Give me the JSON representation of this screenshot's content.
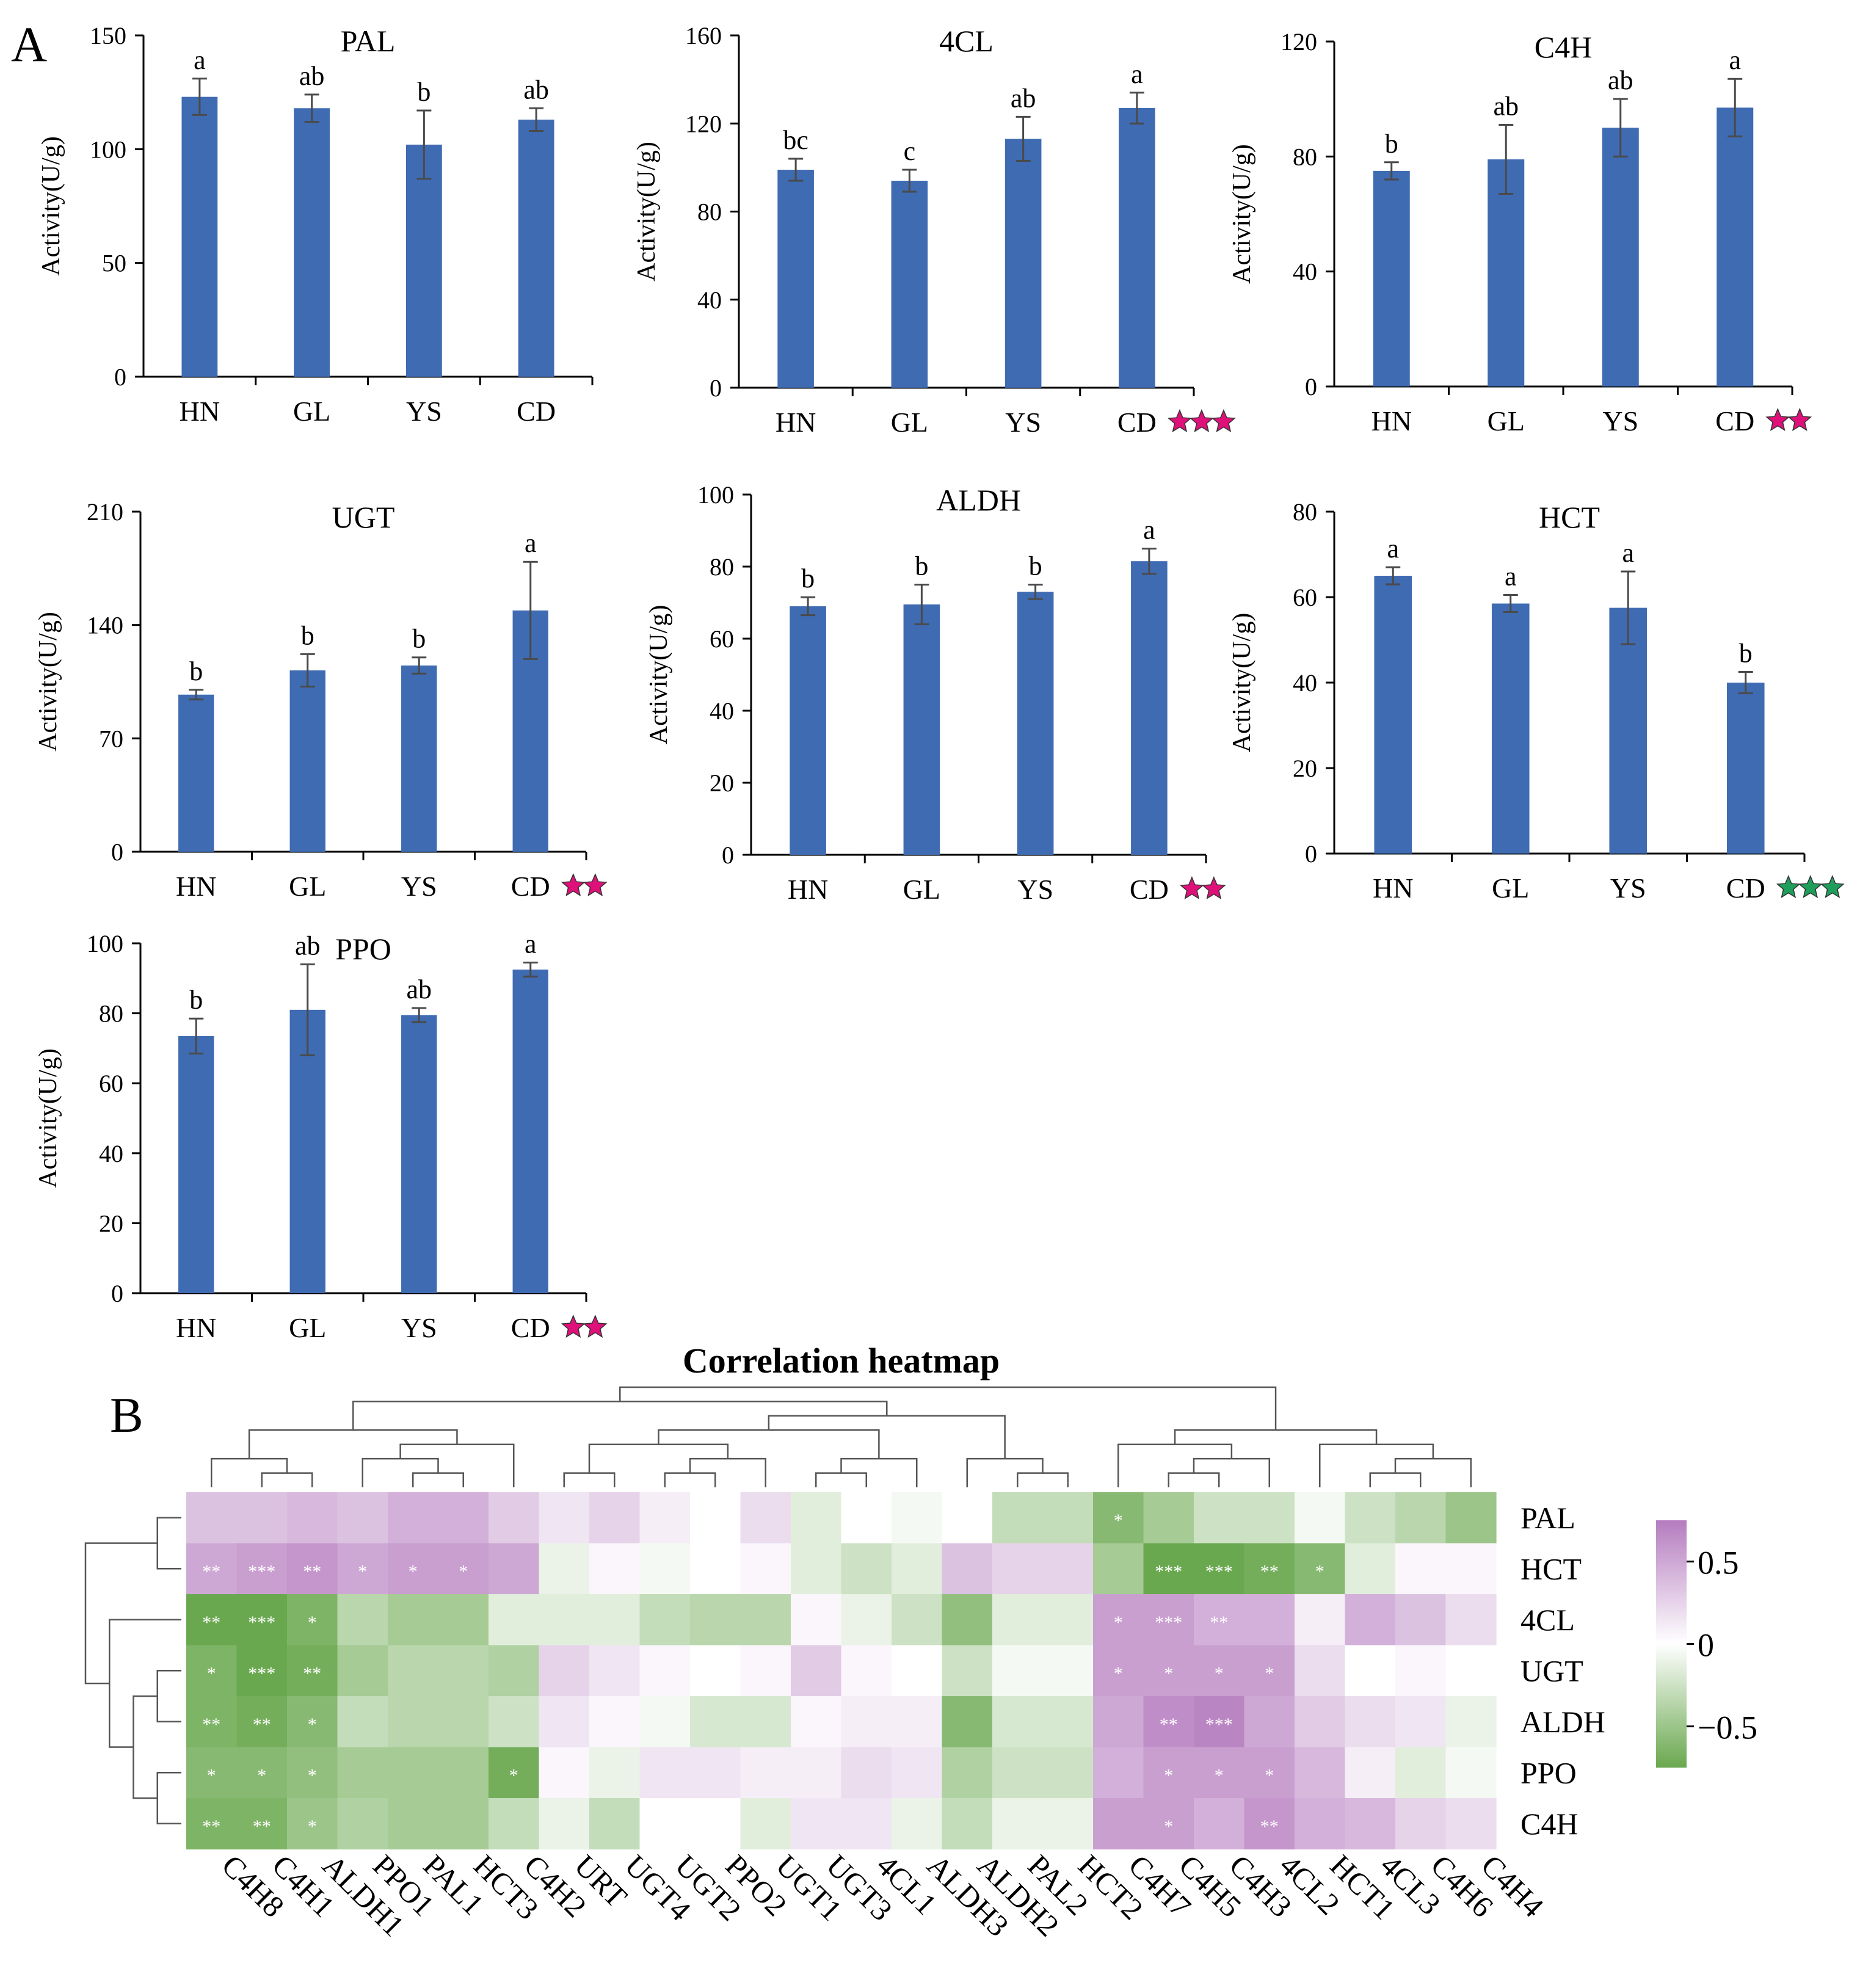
{
  "figure": {
    "panel_labels": [
      "A",
      "B"
    ],
    "colors": {
      "bar": "#3F6BB2",
      "star_magenta": "#E0107A",
      "star_green": "#1E9E5A",
      "heat_low": "#6AA84F",
      "heat_mid": "#FFFFFF",
      "heat_high": "#B57CBF"
    }
  },
  "chart_data": [
    {
      "type": "bar",
      "title": "PAL",
      "ylabel": "Activity(U/g)",
      "categories": [
        "HN",
        "GL",
        "YS",
        "CD"
      ],
      "values": [
        123,
        118,
        102,
        113
      ],
      "errors": [
        8,
        6,
        15,
        5
      ],
      "letters": [
        "a",
        "ab",
        "b",
        "ab"
      ],
      "yticks": [
        0,
        50,
        100,
        150
      ],
      "ylim": [
        0,
        150
      ],
      "stars": 0,
      "star_color": ""
    },
    {
      "type": "bar",
      "title": "4CL",
      "ylabel": "Activity(U/g)",
      "categories": [
        "HN",
        "GL",
        "YS",
        "CD"
      ],
      "values": [
        99,
        94,
        113,
        127
      ],
      "errors": [
        5,
        5,
        10,
        7
      ],
      "letters": [
        "bc",
        "c",
        "ab",
        "a"
      ],
      "yticks": [
        0,
        40,
        80,
        120,
        160
      ],
      "ylim": [
        0,
        160
      ],
      "stars": 3,
      "star_color": "magenta"
    },
    {
      "type": "bar",
      "title": "C4H",
      "ylabel": "Activity(U/g)",
      "categories": [
        "HN",
        "GL",
        "YS",
        "CD"
      ],
      "values": [
        75,
        79,
        90,
        97
      ],
      "errors": [
        3,
        12,
        10,
        10
      ],
      "letters": [
        "b",
        "ab",
        "ab",
        "a"
      ],
      "yticks": [
        0,
        40,
        80,
        120
      ],
      "ylim": [
        0,
        120
      ],
      "stars": 2,
      "star_color": "magenta"
    },
    {
      "type": "bar",
      "title": "UGT",
      "ylabel": "Activity(U/g)",
      "categories": [
        "HN",
        "GL",
        "YS",
        "CD"
      ],
      "values": [
        97,
        112,
        115,
        149
      ],
      "errors": [
        3,
        10,
        5,
        30
      ],
      "letters": [
        "b",
        "b",
        "b",
        "a"
      ],
      "yticks": [
        0,
        70,
        140,
        210
      ],
      "ylim": [
        0,
        210
      ],
      "stars": 2,
      "star_color": "magenta"
    },
    {
      "type": "bar",
      "title": "ALDH",
      "ylabel": "Activity(U/g)",
      "categories": [
        "HN",
        "GL",
        "YS",
        "CD"
      ],
      "values": [
        69,
        69.5,
        73,
        81.5
      ],
      "errors": [
        2.5,
        5.5,
        2,
        3.5
      ],
      "letters": [
        "b",
        "b",
        "b",
        "a"
      ],
      "yticks": [
        0,
        20,
        40,
        60,
        80,
        100
      ],
      "ylim": [
        0,
        100
      ],
      "stars": 2,
      "star_color": "magenta"
    },
    {
      "type": "bar",
      "title": "HCT",
      "ylabel": "Activity(U/g)",
      "categories": [
        "HN",
        "GL",
        "YS",
        "CD"
      ],
      "values": [
        65,
        58.5,
        57.5,
        40
      ],
      "errors": [
        2,
        2,
        8.5,
        2.5
      ],
      "letters": [
        "a",
        "a",
        "a",
        "b"
      ],
      "yticks": [
        0,
        20,
        40,
        60,
        80
      ],
      "ylim": [
        0,
        80
      ],
      "stars": 3,
      "star_color": "green"
    },
    {
      "type": "bar",
      "title": "PPO",
      "ylabel": "Activity(U/g)",
      "categories": [
        "HN",
        "GL",
        "YS",
        "CD"
      ],
      "values": [
        73.5,
        81,
        79.5,
        92.5
      ],
      "errors": [
        5,
        13,
        2,
        2
      ],
      "letters": [
        "b",
        "ab",
        "ab",
        "a"
      ],
      "yticks": [
        0,
        20,
        40,
        60,
        80,
        100
      ],
      "ylim": [
        0,
        100
      ],
      "stars": 2,
      "star_color": "magenta"
    },
    {
      "type": "heatmap",
      "title": "Correlation heatmap",
      "rows": [
        "PAL",
        "HCT",
        "4CL",
        "UGT",
        "ALDH",
        "PPO",
        "C4H"
      ],
      "cols": [
        "C4H8",
        "C4H1",
        "ALDH1",
        "PPO1",
        "PAL1",
        "HCT3",
        "C4H2",
        "URT",
        "UGT4",
        "UGT2",
        "PPO2",
        "UGT1",
        "UGT3",
        "4CL1",
        "ALDH3",
        "ALDH2",
        "PAL2",
        "HCT2",
        "C4H7",
        "C4H5",
        "C4H3",
        "4CL2",
        "HCT1",
        "4CL3",
        "C4H6",
        "C4H4"
      ],
      "values": [
        [
          0.35,
          0.35,
          0.4,
          0.35,
          0.45,
          0.45,
          0.3,
          0.15,
          0.25,
          0.1,
          0.0,
          0.2,
          -0.15,
          0.0,
          -0.05,
          0.0,
          -0.3,
          -0.3,
          -0.6,
          -0.45,
          -0.25,
          -0.25,
          -0.05,
          -0.25,
          -0.35,
          -0.5
        ],
        [
          0.5,
          0.55,
          0.6,
          0.5,
          0.55,
          0.55,
          0.5,
          -0.1,
          0.05,
          -0.05,
          0.0,
          0.05,
          -0.15,
          -0.25,
          -0.15,
          0.35,
          0.25,
          0.25,
          -0.45,
          -0.75,
          -0.8,
          -0.7,
          -0.6,
          -0.15,
          0.05,
          0.05
        ],
        [
          -0.75,
          -0.8,
          -0.65,
          -0.35,
          -0.45,
          -0.45,
          -0.15,
          -0.15,
          -0.15,
          -0.3,
          -0.35,
          -0.35,
          0.05,
          -0.1,
          -0.25,
          -0.55,
          -0.15,
          -0.15,
          0.55,
          0.55,
          0.45,
          0.45,
          0.1,
          0.45,
          0.35,
          0.2
        ],
        [
          -0.65,
          -0.75,
          -0.7,
          -0.45,
          -0.35,
          -0.35,
          -0.4,
          0.25,
          0.15,
          0.05,
          0.0,
          0.05,
          0.3,
          0.05,
          0.0,
          -0.25,
          -0.05,
          -0.05,
          0.55,
          0.55,
          0.55,
          0.55,
          0.2,
          0.0,
          0.05,
          0.0
        ],
        [
          -0.65,
          -0.7,
          -0.6,
          -0.3,
          -0.35,
          -0.35,
          -0.25,
          0.15,
          0.05,
          -0.05,
          -0.2,
          -0.2,
          0.05,
          0.1,
          0.1,
          -0.6,
          -0.2,
          -0.2,
          0.5,
          0.65,
          0.7,
          0.5,
          0.3,
          0.2,
          0.15,
          -0.1
        ],
        [
          -0.6,
          -0.6,
          -0.55,
          -0.45,
          -0.45,
          -0.45,
          -0.7,
          0.05,
          -0.1,
          0.15,
          0.15,
          0.1,
          0.1,
          0.2,
          0.15,
          -0.4,
          -0.25,
          -0.25,
          0.45,
          0.55,
          0.55,
          0.55,
          0.4,
          0.1,
          -0.15,
          -0.05
        ],
        [
          -0.65,
          -0.65,
          -0.5,
          -0.4,
          -0.45,
          -0.45,
          -0.3,
          -0.1,
          -0.3,
          0.0,
          0.0,
          -0.15,
          0.15,
          0.15,
          -0.1,
          -0.3,
          -0.1,
          -0.1,
          0.55,
          0.55,
          0.45,
          0.6,
          0.45,
          0.4,
          0.25,
          0.2
        ]
      ],
      "sig": [
        [
          "",
          "",
          "",
          "",
          "",
          "",
          "",
          "",
          "",
          "",
          "",
          "",
          "",
          "",
          "",
          "",
          "",
          "",
          "*",
          "",
          "",
          "",
          "",
          "",
          "",
          ""
        ],
        [
          "**",
          "***",
          "**",
          "*",
          "*",
          "*",
          "",
          "",
          "",
          "",
          "",
          "",
          "",
          "",
          "",
          "",
          "",
          "",
          "",
          "***",
          "***",
          "**",
          "*",
          "",
          "",
          ""
        ],
        [
          "**",
          "***",
          "*",
          "",
          "",
          "",
          "",
          "",
          "",
          "",
          "",
          "",
          "",
          "",
          "",
          "",
          "",
          "",
          "*",
          "***",
          "**",
          "",
          "",
          "",
          "",
          ""
        ],
        [
          "*",
          "***",
          "**",
          "",
          "",
          "",
          "",
          "",
          "",
          "",
          "",
          "",
          "",
          "",
          "",
          "",
          "",
          "",
          "*",
          "*",
          "*",
          "*",
          "",
          "",
          "",
          ""
        ],
        [
          "**",
          "**",
          "*",
          "",
          "",
          "",
          "",
          "",
          "",
          "",
          "",
          "",
          "",
          "",
          "",
          "",
          "",
          "",
          "",
          "**",
          "***",
          "",
          "",
          "",
          "",
          ""
        ],
        [
          "*",
          "*",
          "*",
          "",
          "",
          "",
          "*",
          "",
          "",
          "",
          "",
          "",
          "",
          "",
          "",
          "",
          "",
          "",
          "",
          "*",
          "*",
          "*",
          "",
          "",
          "",
          ""
        ],
        [
          "**",
          "**",
          "*",
          "",
          "",
          "",
          "",
          "",
          "",
          "",
          "",
          "",
          "",
          "",
          "",
          "",
          "",
          "",
          "",
          "*",
          "",
          "**",
          "",
          "",
          "",
          ""
        ]
      ],
      "colorbar": {
        "ticks": [
          0.5,
          0,
          -0.5
        ],
        "tick_labels": [
          "0.5",
          "0",
          "−0.5"
        ],
        "range": [
          -0.75,
          0.75
        ]
      }
    }
  ]
}
